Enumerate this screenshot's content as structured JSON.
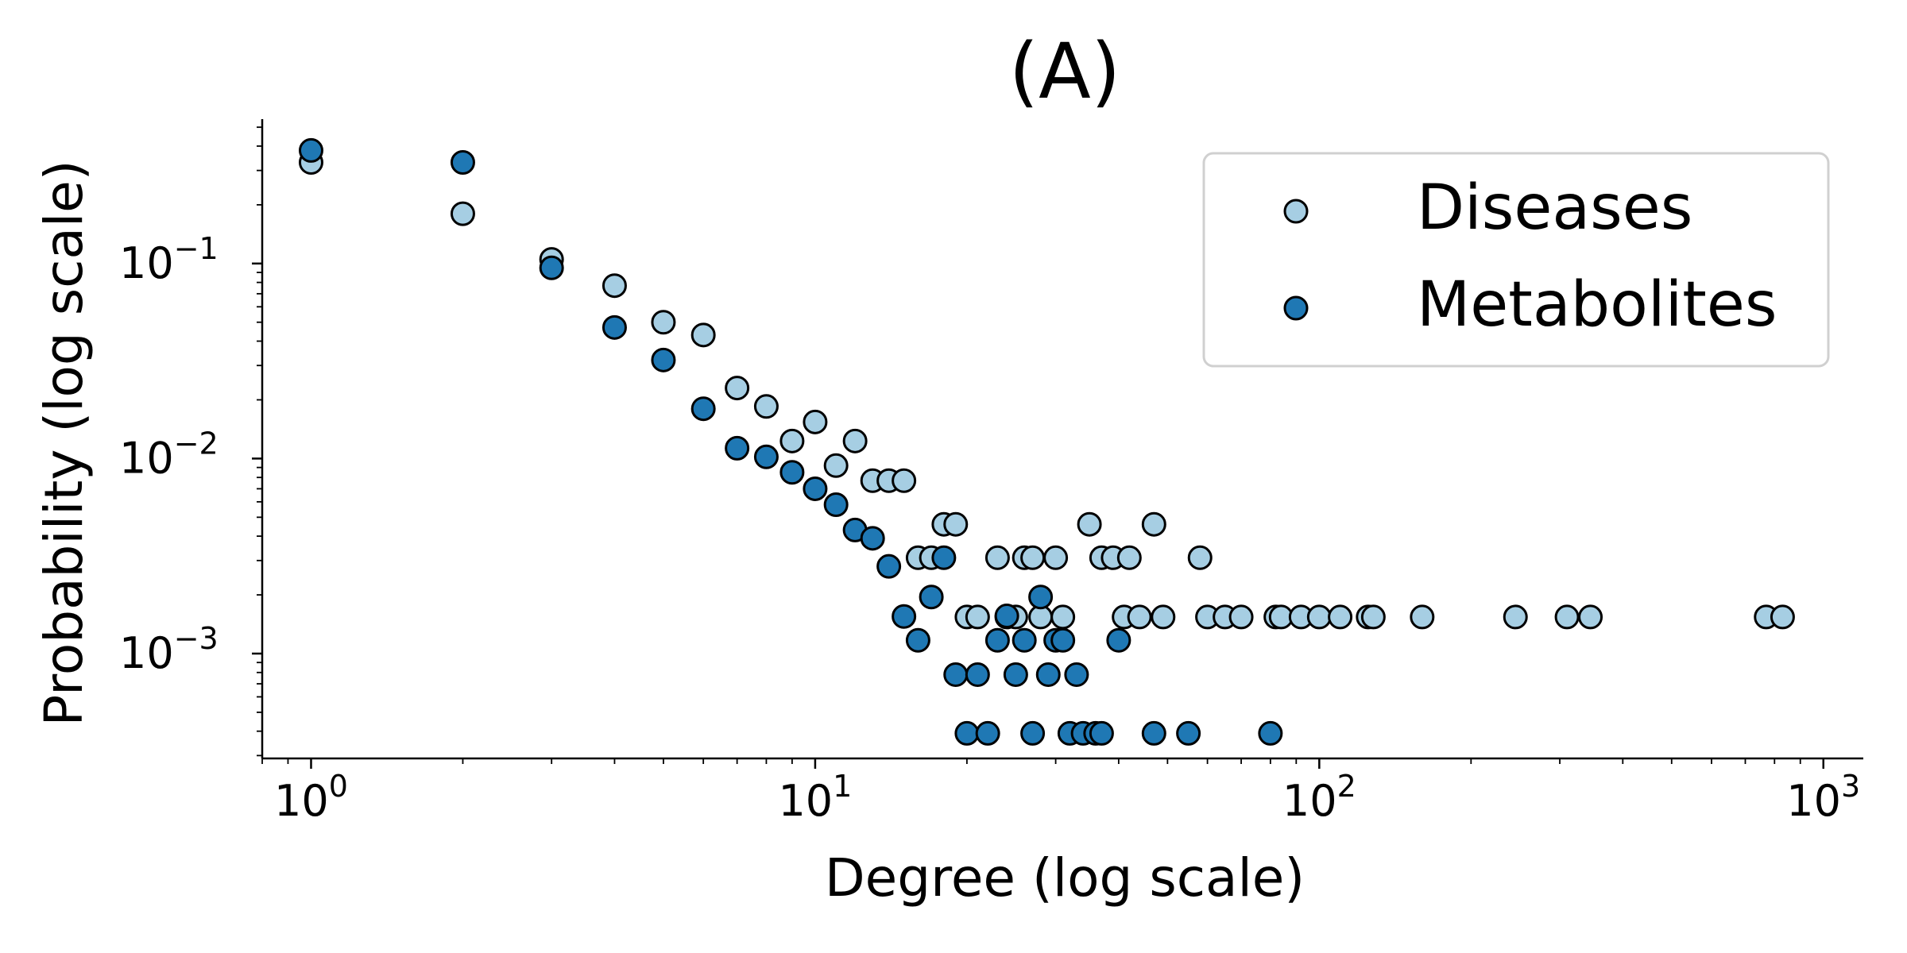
{
  "chart_data": {
    "type": "scatter",
    "title": "(A)",
    "xlabel": "Degree (log scale)",
    "ylabel": "Probability (log scale)",
    "xscale": "log",
    "yscale": "log",
    "xlim": [
      0.8,
      1200
    ],
    "ylim": [
      0.00029,
      0.55
    ],
    "x_tick_labels": [
      {
        "value": 1,
        "base": "10",
        "exp": "0"
      },
      {
        "value": 10,
        "base": "10",
        "exp": "1"
      },
      {
        "value": 100,
        "base": "10",
        "exp": "2"
      },
      {
        "value": 1000,
        "base": "10",
        "exp": "3"
      }
    ],
    "y_tick_labels": [
      {
        "value": 0.1,
        "base": "10",
        "exp": "−1"
      },
      {
        "value": 0.01,
        "base": "10",
        "exp": "−2"
      },
      {
        "value": 0.001,
        "base": "10",
        "exp": "−3"
      }
    ],
    "grid": false,
    "legend_position": "top-right",
    "series": [
      {
        "name": "Diseases",
        "color": "#a6cee3",
        "points": [
          [
            1,
            0.33
          ],
          [
            2,
            0.18
          ],
          [
            3,
            0.105
          ],
          [
            4,
            0.077
          ],
          [
            5,
            0.05
          ],
          [
            6,
            0.043
          ],
          [
            7,
            0.023
          ],
          [
            8,
            0.0185
          ],
          [
            9,
            0.0123
          ],
          [
            10,
            0.0154
          ],
          [
            11,
            0.0092
          ],
          [
            12,
            0.0123
          ],
          [
            13,
            0.0077
          ],
          [
            14,
            0.0077
          ],
          [
            15,
            0.0077
          ],
          [
            16,
            0.0031
          ],
          [
            17,
            0.0031
          ],
          [
            18,
            0.0046
          ],
          [
            19,
            0.0046
          ],
          [
            20,
            0.00154
          ],
          [
            21,
            0.00154
          ],
          [
            23,
            0.0031
          ],
          [
            24,
            0.00154
          ],
          [
            25,
            0.00154
          ],
          [
            26,
            0.0031
          ],
          [
            27,
            0.0031
          ],
          [
            28,
            0.00154
          ],
          [
            30,
            0.0031
          ],
          [
            31,
            0.00154
          ],
          [
            35,
            0.0046
          ],
          [
            37,
            0.0031
          ],
          [
            39,
            0.0031
          ],
          [
            41,
            0.00154
          ],
          [
            42,
            0.0031
          ],
          [
            44,
            0.00154
          ],
          [
            47,
            0.0046
          ],
          [
            49,
            0.00154
          ],
          [
            58,
            0.0031
          ],
          [
            60,
            0.00154
          ],
          [
            65,
            0.00154
          ],
          [
            70,
            0.00154
          ],
          [
            82,
            0.00154
          ],
          [
            84,
            0.00154
          ],
          [
            92,
            0.00154
          ],
          [
            100,
            0.00154
          ],
          [
            110,
            0.00154
          ],
          [
            125,
            0.00154
          ],
          [
            128,
            0.00154
          ],
          [
            160,
            0.00154
          ],
          [
            245,
            0.00154
          ],
          [
            310,
            0.00154
          ],
          [
            345,
            0.00154
          ],
          [
            770,
            0.00154
          ],
          [
            830,
            0.00154
          ]
        ]
      },
      {
        "name": "Metabolites",
        "color": "#1f78b4",
        "points": [
          [
            1,
            0.38
          ],
          [
            2,
            0.33
          ],
          [
            3,
            0.095
          ],
          [
            4,
            0.047
          ],
          [
            5,
            0.032
          ],
          [
            6,
            0.018
          ],
          [
            7,
            0.0113
          ],
          [
            8,
            0.0102
          ],
          [
            9,
            0.0085
          ],
          [
            10,
            0.007
          ],
          [
            11,
            0.0058
          ],
          [
            12,
            0.0043
          ],
          [
            13,
            0.0039
          ],
          [
            14,
            0.0028
          ],
          [
            15,
            0.00155
          ],
          [
            16,
            0.00117
          ],
          [
            17,
            0.00195
          ],
          [
            18,
            0.0031
          ],
          [
            19,
            0.00078
          ],
          [
            20,
            0.00039
          ],
          [
            21,
            0.00078
          ],
          [
            22,
            0.00039
          ],
          [
            23,
            0.00117
          ],
          [
            24,
            0.00156
          ],
          [
            25,
            0.00078
          ],
          [
            26,
            0.00117
          ],
          [
            27,
            0.00039
          ],
          [
            28,
            0.00195
          ],
          [
            29,
            0.00078
          ],
          [
            30,
            0.00117
          ],
          [
            31,
            0.00117
          ],
          [
            32,
            0.00039
          ],
          [
            33,
            0.00078
          ],
          [
            34,
            0.00039
          ],
          [
            36,
            0.00039
          ],
          [
            37,
            0.00039
          ],
          [
            40,
            0.00117
          ],
          [
            47,
            0.00039
          ],
          [
            55,
            0.00039
          ],
          [
            80,
            0.00039
          ]
        ]
      }
    ]
  }
}
